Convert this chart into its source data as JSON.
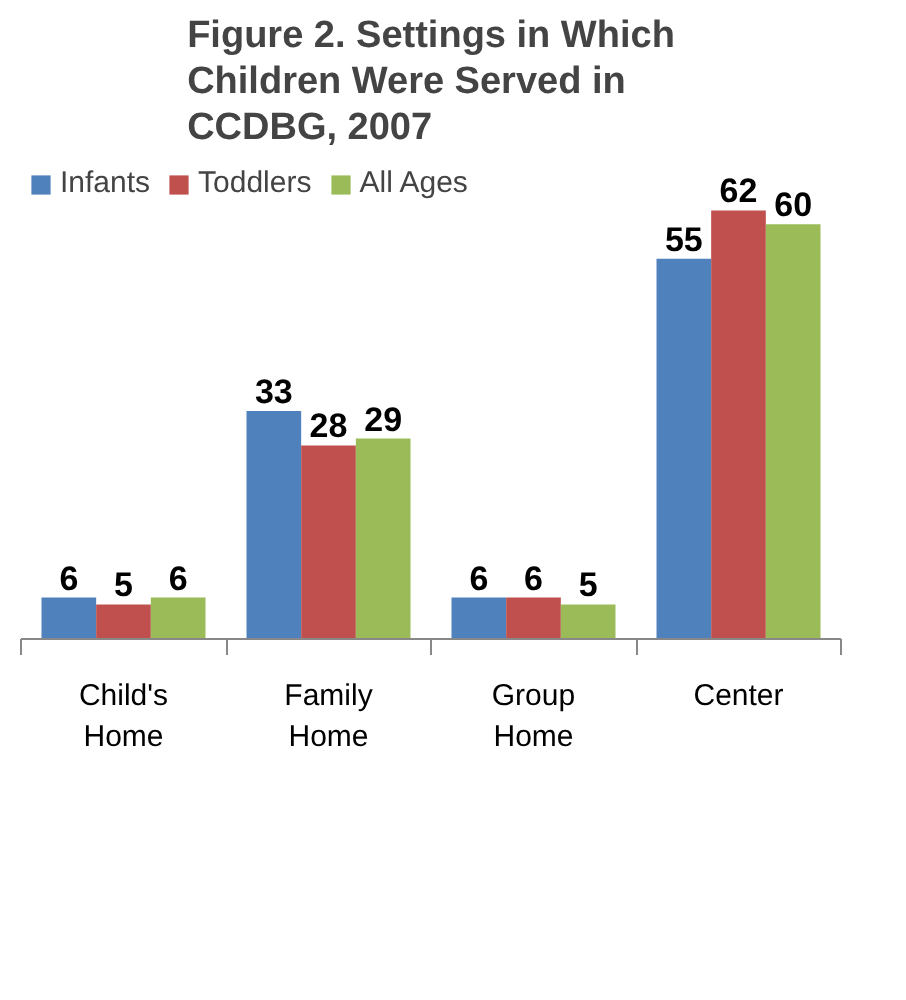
{
  "chart_data": {
    "type": "bar",
    "title": "Figure 2. Settings in Which Children Were Served in CCDBG, 2007",
    "categories": [
      "Child's Home",
      "Family Home",
      "Group Home",
      "Center"
    ],
    "series": [
      {
        "name": "Infants",
        "color": "#4f81bd",
        "values": [
          6,
          33,
          6,
          55
        ]
      },
      {
        "name": "Toddlers",
        "color": "#c0504d",
        "values": [
          5,
          28,
          6,
          62
        ]
      },
      {
        "name": "All Ages",
        "color": "#9bbb59",
        "values": [
          6,
          29,
          5,
          60
        ]
      }
    ],
    "data_labels": true,
    "legend": "top left",
    "grid": false,
    "tick_labels": "x"
  }
}
